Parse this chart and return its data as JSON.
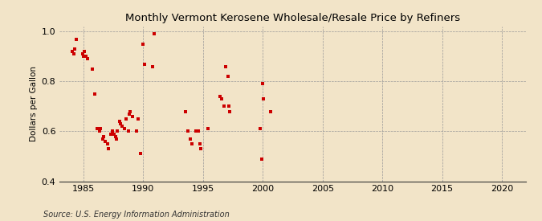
{
  "title": "Monthly Vermont Kerosene Wholesale/Resale Price by Refiners",
  "ylabel": "Dollars per Gallon",
  "source": "Source: U.S. Energy Information Administration",
  "xlim": [
    1983,
    2022
  ],
  "ylim": [
    0.4,
    1.02
  ],
  "xticks": [
    1985,
    1990,
    1995,
    2000,
    2005,
    2010,
    2015,
    2020
  ],
  "yticks": [
    0.4,
    0.6,
    0.8,
    1.0
  ],
  "background_color": "#f2e4c8",
  "plot_bg_color": "#f2e4c8",
  "dot_color": "#cc0000",
  "data_x": [
    1984.08,
    1984.17,
    1984.25,
    1984.42,
    1984.92,
    1985.0,
    1985.08,
    1985.17,
    1985.33,
    1985.75,
    1985.92,
    1986.17,
    1986.33,
    1986.42,
    1986.58,
    1986.67,
    1986.83,
    1987.0,
    1987.08,
    1987.25,
    1987.42,
    1987.58,
    1987.67,
    1987.75,
    1987.83,
    1988.0,
    1988.08,
    1988.25,
    1988.42,
    1988.58,
    1988.75,
    1988.83,
    1988.92,
    1989.08,
    1989.42,
    1989.58,
    1989.75,
    1990.0,
    1990.08,
    1990.75,
    1990.92,
    1993.5,
    1993.75,
    1993.92,
    1994.08,
    1994.42,
    1994.58,
    1994.75,
    1994.83,
    1995.42,
    1996.42,
    1996.58,
    1996.75,
    1996.92,
    1997.08,
    1997.17,
    1997.25,
    1999.75,
    1999.92,
    2000.0,
    2000.08,
    2000.67
  ],
  "data_y": [
    0.92,
    0.91,
    0.93,
    0.97,
    0.91,
    0.9,
    0.92,
    0.9,
    0.89,
    0.85,
    0.75,
    0.61,
    0.6,
    0.61,
    0.57,
    0.58,
    0.56,
    0.55,
    0.53,
    0.59,
    0.6,
    0.59,
    0.58,
    0.57,
    0.6,
    0.64,
    0.63,
    0.62,
    0.61,
    0.65,
    0.6,
    0.67,
    0.68,
    0.66,
    0.6,
    0.65,
    0.51,
    0.95,
    0.87,
    0.86,
    0.99,
    0.68,
    0.6,
    0.57,
    0.55,
    0.6,
    0.6,
    0.55,
    0.53,
    0.61,
    0.74,
    0.73,
    0.7,
    0.86,
    0.82,
    0.7,
    0.68,
    0.61,
    0.49,
    0.79,
    0.73,
    0.68
  ]
}
